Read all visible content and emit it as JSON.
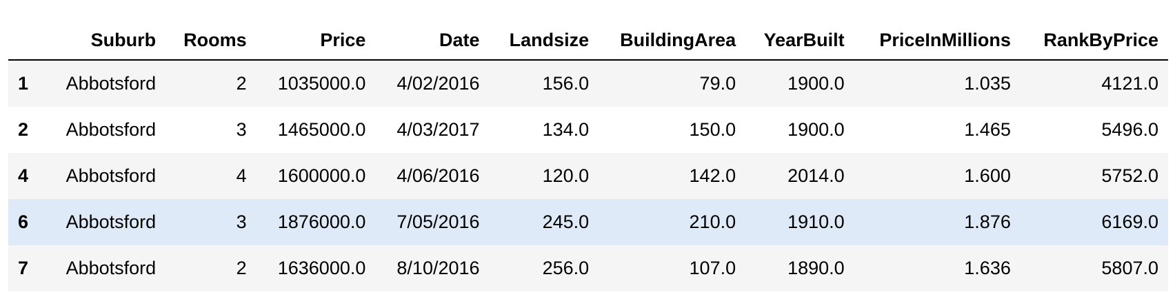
{
  "table": {
    "columns": [
      "",
      "Suburb",
      "Rooms",
      "Price",
      "Date",
      "Landsize",
      "BuildingArea",
      "YearBuilt",
      "PriceInMillions",
      "RankByPrice"
    ],
    "rows": [
      {
        "index": "1",
        "cells": [
          "Abbotsford",
          "2",
          "1035000.0",
          "4/02/2016",
          "156.0",
          "79.0",
          "1900.0",
          "1.035",
          "4121.0"
        ]
      },
      {
        "index": "2",
        "cells": [
          "Abbotsford",
          "3",
          "1465000.0",
          "4/03/2017",
          "134.0",
          "150.0",
          "1900.0",
          "1.465",
          "5496.0"
        ]
      },
      {
        "index": "4",
        "cells": [
          "Abbotsford",
          "4",
          "1600000.0",
          "4/06/2016",
          "120.0",
          "142.0",
          "2014.0",
          "1.600",
          "5752.0"
        ]
      },
      {
        "index": "6",
        "cells": [
          "Abbotsford",
          "3",
          "1876000.0",
          "7/05/2016",
          "245.0",
          "210.0",
          "1910.0",
          "1.876",
          "6169.0"
        ]
      },
      {
        "index": "7",
        "cells": [
          "Abbotsford",
          "2",
          "1636000.0",
          "8/10/2016",
          "256.0",
          "107.0",
          "1890.0",
          "1.636",
          "5807.0"
        ]
      }
    ],
    "highlighted_row": 3,
    "colors": {
      "stripe": "#f5f5f5",
      "hover": "#dfeaf8",
      "header_rule": "#000000"
    }
  }
}
